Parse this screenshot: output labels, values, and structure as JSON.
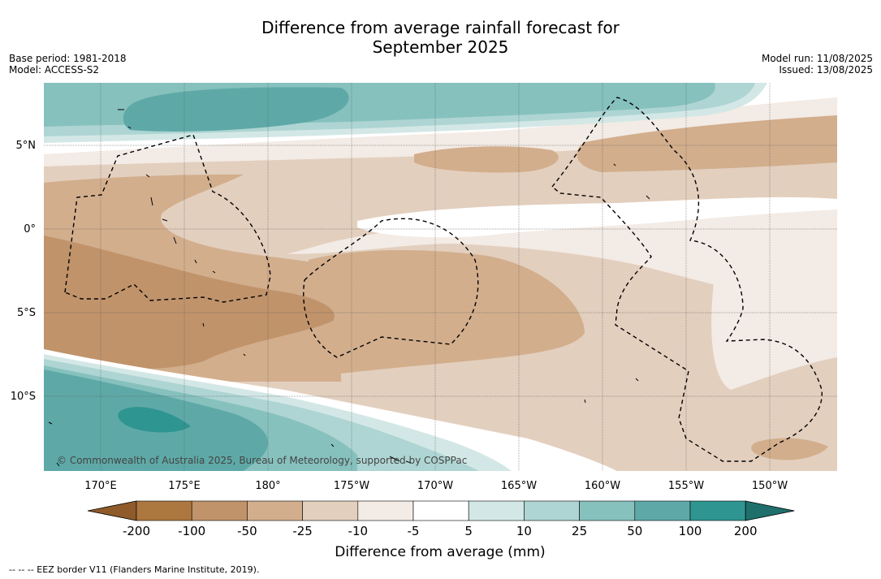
{
  "title_line1": "Difference from average rainfall forecast for",
  "title_line2": "September 2025",
  "base_period": "Base period: 1981-2018",
  "model": "Model: ACCESS-S2",
  "model_run": "Model run: 11/08/2025",
  "issued": "Issued: 13/08/2025",
  "copyright": "© Commonwealth of Australia 2025, Bureau of Meteorology, supported by COSPPac",
  "lat_labels": [
    "5°N",
    "0°",
    "5°S",
    "10°S"
  ],
  "lon_labels": [
    "170°E",
    "175°E",
    "180°",
    "175°W",
    "170°W",
    "165°W",
    "160°W",
    "155°W",
    "150°W"
  ],
  "colorbar": {
    "ticks": [
      "-200",
      "-100",
      "-50",
      "-25",
      "-10",
      "-5",
      "5",
      "10",
      "25",
      "50",
      "100",
      "200"
    ],
    "colors": [
      "#8f5b2a",
      "#ad7740",
      "#c0936b",
      "#d2ae8d",
      "#e3cfbe",
      "#f3ebe5",
      "#ffffff",
      "#d3e8e6",
      "#aed5d3",
      "#86c1be",
      "#5ea9a7",
      "#2f9590",
      "#1f706c"
    ],
    "label": "Difference from average (mm)"
  },
  "footnote": "--  --  -- EEZ border V11 (Flanders Marine Institute, 2019)."
}
